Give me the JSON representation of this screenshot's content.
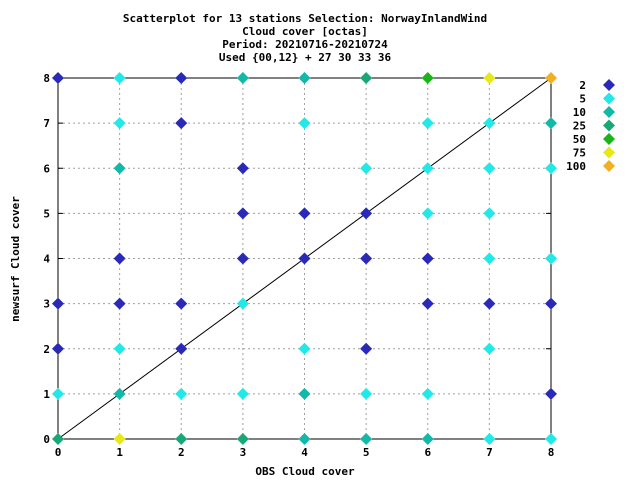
{
  "chart_data": {
    "type": "scatter",
    "title_lines": [
      "Scatterplot for   13 stations Selection: NorwayInlandWind",
      "Cloud cover [octas]",
      "Period: 20210716-20210724",
      "Used {00,12} + 27 30 33 36"
    ],
    "xlabel": "OBS Cloud cover",
    "ylabel": "newsurf Cloud cover",
    "xlim": [
      0,
      8
    ],
    "ylim": [
      0,
      8
    ],
    "xticks": [
      "0",
      "1",
      "2",
      "3",
      "4",
      "5",
      "6",
      "7",
      "8"
    ],
    "yticks": [
      "0",
      "1",
      "2",
      "3",
      "4",
      "5",
      "6",
      "7",
      "8"
    ],
    "grid": true,
    "reference_line": "y = x",
    "legend_position": "right",
    "legend": [
      {
        "label": "2",
        "color": "#2a2ab8"
      },
      {
        "label": "5",
        "color": "#22e8e8"
      },
      {
        "label": "10",
        "color": "#12b8a8"
      },
      {
        "label": "25",
        "color": "#18a878"
      },
      {
        "label": "50",
        "color": "#18b418"
      },
      {
        "label": "75",
        "color": "#e8e818"
      },
      {
        "label": "100",
        "color": "#f0b020"
      }
    ],
    "points": [
      {
        "x": 0,
        "y": 8,
        "c": "2"
      },
      {
        "x": 1,
        "y": 8,
        "c": "5"
      },
      {
        "x": 2,
        "y": 8,
        "c": "2"
      },
      {
        "x": 3,
        "y": 8,
        "c": "10"
      },
      {
        "x": 4,
        "y": 8,
        "c": "10"
      },
      {
        "x": 5,
        "y": 8,
        "c": "25"
      },
      {
        "x": 6,
        "y": 8,
        "c": "50"
      },
      {
        "x": 7,
        "y": 8,
        "c": "75"
      },
      {
        "x": 8,
        "y": 8,
        "c": "100"
      },
      {
        "x": 1,
        "y": 7,
        "c": "5"
      },
      {
        "x": 2,
        "y": 7,
        "c": "2"
      },
      {
        "x": 4,
        "y": 7,
        "c": "5"
      },
      {
        "x": 6,
        "y": 7,
        "c": "5"
      },
      {
        "x": 7,
        "y": 7,
        "c": "5"
      },
      {
        "x": 8,
        "y": 7,
        "c": "10"
      },
      {
        "x": 1,
        "y": 6,
        "c": "10"
      },
      {
        "x": 3,
        "y": 6,
        "c": "2"
      },
      {
        "x": 5,
        "y": 6,
        "c": "5"
      },
      {
        "x": 6,
        "y": 6,
        "c": "5"
      },
      {
        "x": 7,
        "y": 6,
        "c": "5"
      },
      {
        "x": 8,
        "y": 6,
        "c": "5"
      },
      {
        "x": 3,
        "y": 5,
        "c": "2"
      },
      {
        "x": 4,
        "y": 5,
        "c": "2"
      },
      {
        "x": 5,
        "y": 5,
        "c": "2"
      },
      {
        "x": 6,
        "y": 5,
        "c": "5"
      },
      {
        "x": 7,
        "y": 5,
        "c": "5"
      },
      {
        "x": 1,
        "y": 4,
        "c": "2"
      },
      {
        "x": 3,
        "y": 4,
        "c": "2"
      },
      {
        "x": 4,
        "y": 4,
        "c": "2"
      },
      {
        "x": 5,
        "y": 4,
        "c": "2"
      },
      {
        "x": 6,
        "y": 4,
        "c": "2"
      },
      {
        "x": 7,
        "y": 4,
        "c": "5"
      },
      {
        "x": 8,
        "y": 4,
        "c": "5"
      },
      {
        "x": 0,
        "y": 3,
        "c": "2"
      },
      {
        "x": 1,
        "y": 3,
        "c": "2"
      },
      {
        "x": 2,
        "y": 3,
        "c": "2"
      },
      {
        "x": 3,
        "y": 3,
        "c": "5"
      },
      {
        "x": 6,
        "y": 3,
        "c": "2"
      },
      {
        "x": 7,
        "y": 3,
        "c": "2"
      },
      {
        "x": 8,
        "y": 3,
        "c": "2"
      },
      {
        "x": 0,
        "y": 2,
        "c": "2"
      },
      {
        "x": 1,
        "y": 2,
        "c": "5"
      },
      {
        "x": 2,
        "y": 2,
        "c": "2"
      },
      {
        "x": 4,
        "y": 2,
        "c": "5"
      },
      {
        "x": 5,
        "y": 2,
        "c": "2"
      },
      {
        "x": 7,
        "y": 2,
        "c": "5"
      },
      {
        "x": 0,
        "y": 1,
        "c": "5"
      },
      {
        "x": 1,
        "y": 1,
        "c": "10"
      },
      {
        "x": 2,
        "y": 1,
        "c": "5"
      },
      {
        "x": 3,
        "y": 1,
        "c": "5"
      },
      {
        "x": 4,
        "y": 1,
        "c": "10"
      },
      {
        "x": 5,
        "y": 1,
        "c": "5"
      },
      {
        "x": 6,
        "y": 1,
        "c": "5"
      },
      {
        "x": 8,
        "y": 1,
        "c": "2"
      },
      {
        "x": 0,
        "y": 0,
        "c": "25"
      },
      {
        "x": 1,
        "y": 0,
        "c": "75"
      },
      {
        "x": 2,
        "y": 0,
        "c": "25"
      },
      {
        "x": 3,
        "y": 0,
        "c": "25"
      },
      {
        "x": 4,
        "y": 0,
        "c": "10"
      },
      {
        "x": 5,
        "y": 0,
        "c": "10"
      },
      {
        "x": 6,
        "y": 0,
        "c": "10"
      },
      {
        "x": 7,
        "y": 0,
        "c": "5"
      },
      {
        "x": 8,
        "y": 0,
        "c": "5"
      }
    ]
  }
}
